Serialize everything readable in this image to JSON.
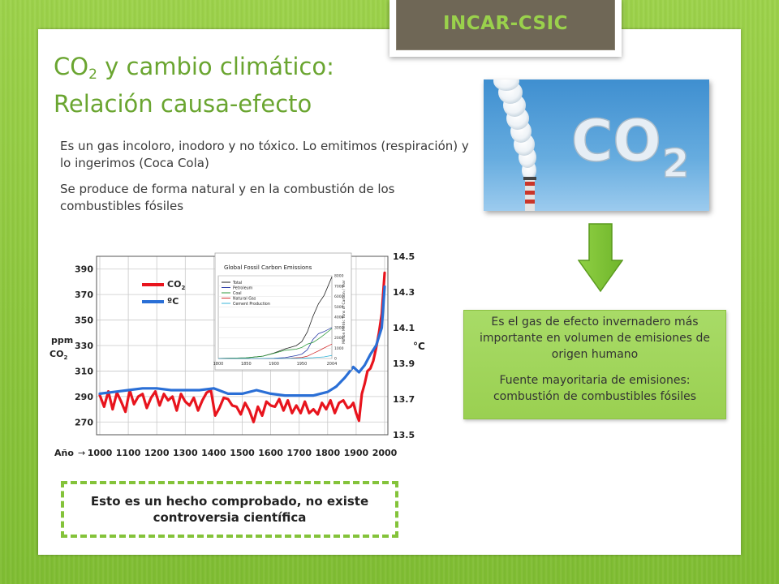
{
  "org_label": "INCAR-CSIC",
  "title": {
    "line1_prefix": "CO",
    "line1_subscript": "2",
    "line1_suffix": " y cambio climático:",
    "line2": "Relación causa-efecto"
  },
  "paragraphs": [
    "Es un gas incoloro, inodoro y no tóxico. Lo emitimos (respiración) y lo ingerimos (Coca Cola)",
    "Se produce de forma natural y en la combustión de los combustibles fósiles"
  ],
  "image": {
    "co2_label": "CO",
    "co2_subscript": "2"
  },
  "info_box": {
    "text1": "Es el gas de efecto invernadero más importante en volumen de emisiones de origen humano",
    "text2": "Fuente mayoritaria de emisiones: combustión de combustibles fósiles"
  },
  "callout": "Esto es un hecho comprobado, no existe controversia científica",
  "chart_data": {
    "type": "line",
    "x_label": "Año",
    "x_ticks": [
      "1000",
      "1100",
      "1200",
      "1300",
      "1400",
      "1500",
      "1600",
      "1700",
      "1800",
      "1900",
      "2000"
    ],
    "y_label_left_1": "ppm",
    "y_label_left_2": "CO",
    "y_label_left_2_sub": "2",
    "y_ticks_left": [
      "390",
      "370",
      "350",
      "330",
      "310",
      "290",
      "270"
    ],
    "y_label_right": "°C",
    "y_ticks_right": [
      "14.5",
      "14.3",
      "14.1",
      "13.9",
      "13.7",
      "13.5"
    ],
    "ylim_left": [
      260,
      400
    ],
    "ylim_right": [
      13.5,
      14.5
    ],
    "legend": [
      {
        "name_main": "CO",
        "name_sub": "2",
        "color": "#e8141d"
      },
      {
        "name_main": "ºC",
        "name_sub": "",
        "color": "#2a6fd6"
      }
    ],
    "series": [
      {
        "name": "CO2",
        "axis": "left",
        "color": "#e8141d",
        "x": [
          1000,
          1015,
          1030,
          1045,
          1060,
          1075,
          1090,
          1105,
          1120,
          1135,
          1150,
          1165,
          1180,
          1195,
          1210,
          1225,
          1240,
          1255,
          1270,
          1285,
          1300,
          1315,
          1330,
          1345,
          1360,
          1375,
          1390,
          1405,
          1420,
          1435,
          1450,
          1465,
          1480,
          1495,
          1510,
          1525,
          1540,
          1555,
          1570,
          1585,
          1600,
          1615,
          1630,
          1645,
          1660,
          1675,
          1690,
          1705,
          1720,
          1735,
          1750,
          1765,
          1780,
          1795,
          1810,
          1825,
          1840,
          1855,
          1870,
          1880,
          1890,
          1900,
          1910,
          1920,
          1930,
          1940,
          1950,
          1960,
          1970,
          1980,
          1990,
          2000
        ],
        "y": [
          291,
          282,
          294,
          280,
          293,
          286,
          278,
          295,
          284,
          290,
          292,
          281,
          289,
          294,
          283,
          292,
          287,
          290,
          279,
          292,
          286,
          283,
          289,
          279,
          287,
          293,
          295,
          275,
          281,
          289,
          288,
          283,
          282,
          276,
          285,
          279,
          270,
          282,
          275,
          286,
          283,
          282,
          288,
          279,
          287,
          277,
          283,
          277,
          286,
          277,
          280,
          276,
          285,
          280,
          287,
          277,
          285,
          287,
          281,
          282,
          285,
          277,
          271,
          292,
          300,
          310,
          312,
          318,
          328,
          340,
          355,
          387
        ]
      },
      {
        "name": "ºC",
        "axis": "right",
        "color": "#2a6fd6",
        "x": [
          1000,
          1050,
          1100,
          1150,
          1200,
          1250,
          1300,
          1350,
          1400,
          1450,
          1500,
          1550,
          1600,
          1650,
          1700,
          1750,
          1800,
          1830,
          1860,
          1890,
          1910,
          1930,
          1950,
          1970,
          1990,
          2000
        ],
        "y": [
          13.73,
          13.74,
          13.75,
          13.76,
          13.76,
          13.75,
          13.75,
          13.75,
          13.76,
          13.73,
          13.73,
          13.75,
          13.73,
          13.72,
          13.72,
          13.72,
          13.74,
          13.77,
          13.82,
          13.88,
          13.85,
          13.89,
          13.95,
          14.0,
          14.1,
          14.33
        ]
      }
    ],
    "inset": {
      "title": "Global Fossil Carbon Emissions",
      "ylabel": "Million Metric Tons of Carbon / Year",
      "x_ticks": [
        "1800",
        "1850",
        "1900",
        "1950",
        "2004"
      ],
      "y_ticks": [
        "8000",
        "7000",
        "6000",
        "5000",
        "4000",
        "3000",
        "2000",
        "1000",
        "0"
      ],
      "legend": [
        "Total",
        "Petroleum",
        "Coal",
        "Natural Gas",
        "Cement Production"
      ],
      "colors": [
        "#222222",
        "#2b3ca8",
        "#2e9a3c",
        "#d43030",
        "#38b5d8"
      ],
      "series": [
        {
          "name": "Total",
          "x": [
            1800,
            1850,
            1880,
            1900,
            1920,
            1940,
            1950,
            1960,
            1970,
            1980,
            1990,
            2004
          ],
          "y": [
            10,
            60,
            230,
            530,
            930,
            1250,
            1630,
            2580,
            4080,
            5300,
            6100,
            7900
          ]
        },
        {
          "name": "Petroleum",
          "x": [
            1800,
            1870,
            1900,
            1920,
            1940,
            1950,
            1960,
            1970,
            1980,
            1990,
            2004
          ],
          "y": [
            0,
            0,
            20,
            90,
            280,
            420,
            850,
            1840,
            2400,
            2600,
            3000
          ]
        },
        {
          "name": "Coal",
          "x": [
            1800,
            1850,
            1880,
            1900,
            1920,
            1940,
            1950,
            1960,
            1970,
            1980,
            1990,
            2004
          ],
          "y": [
            10,
            60,
            230,
            500,
            800,
            900,
            1070,
            1400,
            1550,
            1900,
            2300,
            2900
          ]
        },
        {
          "name": "Natural Gas",
          "x": [
            1800,
            1900,
            1930,
            1950,
            1960,
            1970,
            1980,
            1990,
            2004
          ],
          "y": [
            0,
            0,
            40,
            100,
            230,
            490,
            740,
            1020,
            1400
          ]
        },
        {
          "name": "Cement Production",
          "x": [
            1800,
            1920,
            1950,
            1970,
            1990,
            2004
          ],
          "y": [
            0,
            5,
            20,
            80,
            160,
            300
          ]
        }
      ]
    }
  }
}
